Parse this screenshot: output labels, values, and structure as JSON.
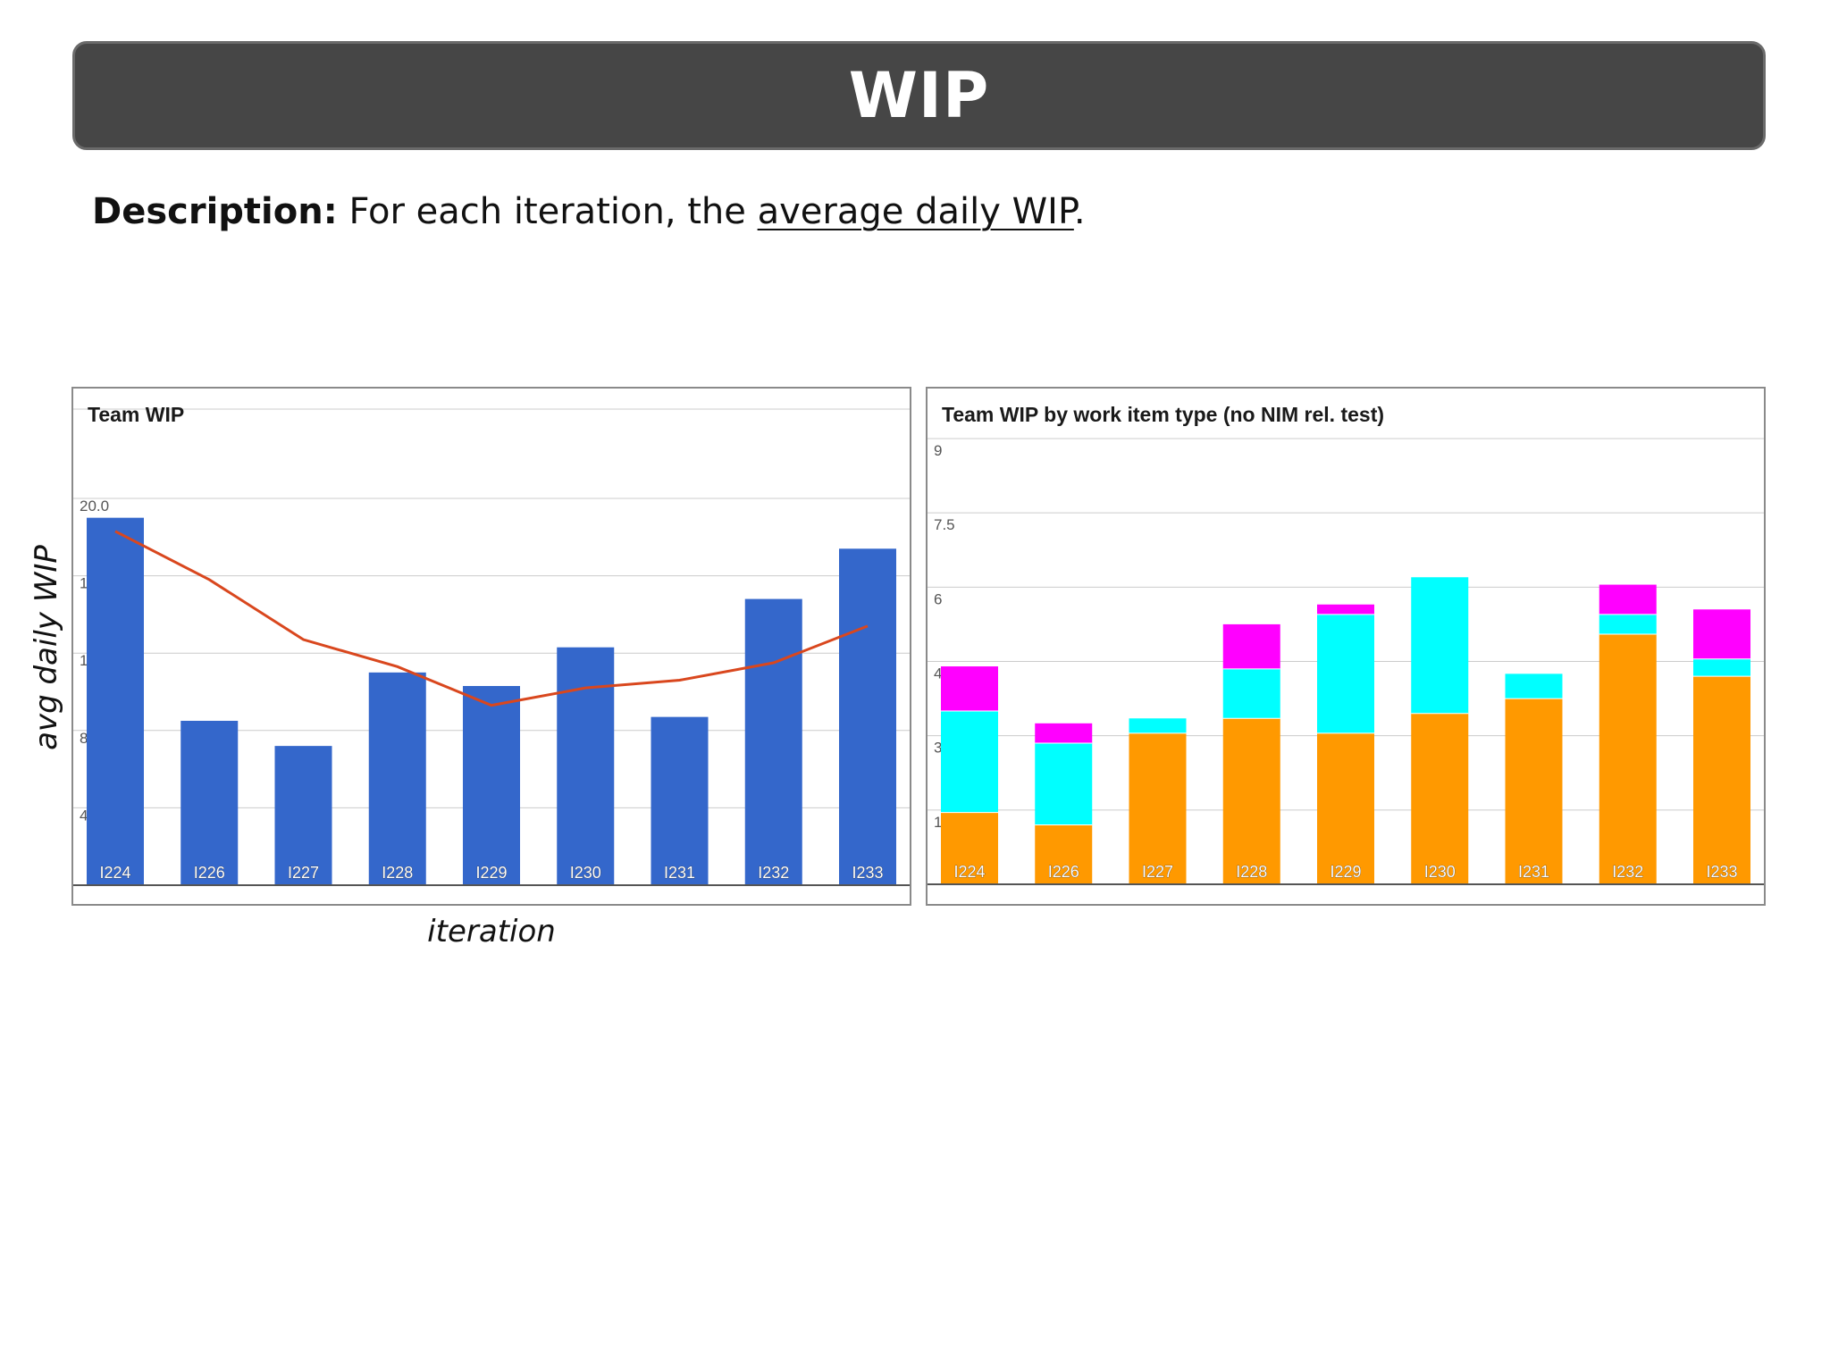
{
  "header": {
    "title": "WIP"
  },
  "description": {
    "lead": "Description:",
    "pre": "For each iteration, the",
    "link": "average daily WIP",
    "post": "."
  },
  "axis_labels": {
    "y": "avg daily WIP",
    "x": "iteration"
  },
  "colors": {
    "bar": "#3467CB",
    "trend": "#D9471E",
    "orange": "#FF9900",
    "cyan": "#00FFFF",
    "magenta": "#FF00FF",
    "grid": "#cccccc"
  },
  "chart_data": [
    {
      "type": "bar",
      "title": "Team WIP",
      "categories": [
        "I224",
        "I226",
        "I227",
        "I228",
        "I229",
        "I230",
        "I231",
        "I232",
        "I233"
      ],
      "series": [
        {
          "values": [
            19.0,
            8.5,
            7.2,
            11.0,
            10.3,
            12.3,
            8.7,
            14.8,
            17.4
          ]
        },
        {
          "type": "line",
          "values": [
            18.3,
            15.8,
            12.7,
            11.3,
            9.3,
            10.2,
            10.6,
            11.5,
            13.4
          ]
        }
      ],
      "yticks": [
        "4.0",
        "8.0",
        "12.0",
        "16.0",
        "20.0"
      ],
      "ylim": [
        0,
        20
      ],
      "grid": true,
      "legend": "none"
    },
    {
      "type": "bar",
      "stacked": true,
      "title": "Team WIP by work item type (no NIM rel. test)",
      "categories": [
        "I224",
        "I226",
        "I227",
        "I228",
        "I229",
        "I230",
        "I231",
        "I232",
        "I233"
      ],
      "series": [
        {
          "values": [
            1.45,
            1.2,
            3.05,
            3.35,
            3.05,
            3.45,
            3.75,
            5.05,
            4.2
          ]
        },
        {
          "values": [
            2.05,
            1.65,
            0.3,
            1.0,
            2.4,
            2.75,
            0.5,
            0.4,
            0.35
          ]
        },
        {
          "values": [
            0.9,
            0.4,
            0.0,
            0.9,
            0.2,
            0.0,
            0.0,
            0.6,
            1.0
          ]
        }
      ],
      "yticks": [
        "1.5",
        "3",
        "4.5",
        "6",
        "7.5",
        "9"
      ],
      "ylim": [
        0,
        9
      ],
      "grid": true,
      "legend": "none"
    }
  ]
}
